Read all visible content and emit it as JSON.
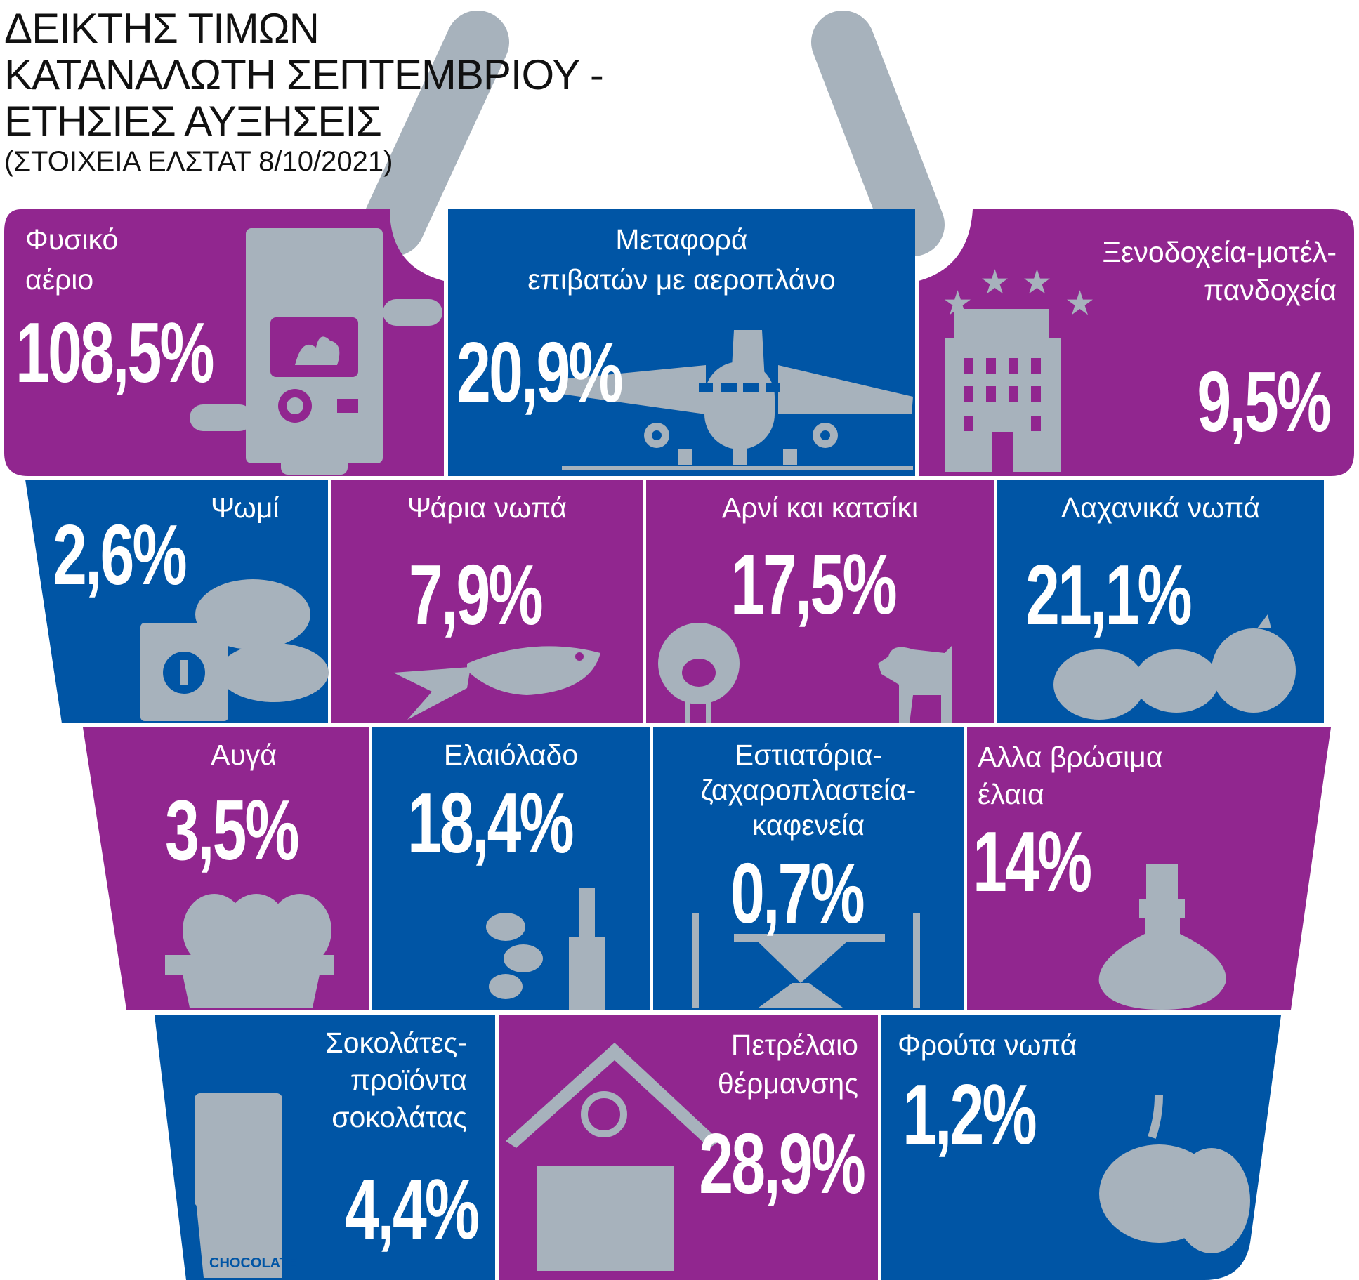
{
  "title": {
    "line1": "ΔΕΙΚΤΗΣ ΤΙΜΩΝ",
    "line2": "ΚΑΤΑΝΑΛΩΤΗ ΣΕΠΤΕΜΒΡΙΟΥ -",
    "line3": "ΕΤΗΣΙΕΣ ΑΥΞΗΣΕΙΣ",
    "source": "(ΣΤΟΙΧΕΙΑ ΕΛΣΤΑΤ 8/10/2021)"
  },
  "colors": {
    "purple": "#91268F",
    "blue": "#0055A5",
    "icon_gray": "#A7B2BC"
  },
  "items": [
    {
      "label": "Φυσικό αέριο",
      "line1": "Φυσικό",
      "line2": "αέριο",
      "value": "108,5%",
      "icon": "gas-boiler-icon"
    },
    {
      "label": "Μεταφορά επιβατών με αεροπλάνο",
      "line1": "Μεταφορά",
      "line2": "επιβατών με αεροπλάνο",
      "value": "20,9%",
      "icon": "airplane-icon"
    },
    {
      "label": "Ξενοδοχεία-μοτέλ-πανδοχεία",
      "line1": "Ξενοδοχεία-μοτέλ-",
      "line2": "πανδοχεία",
      "value": "9,5%",
      "icon": "hotel-icon"
    },
    {
      "label": "Ψωμί",
      "value": "2,6%",
      "icon": "bread-icon"
    },
    {
      "label": "Ψάρια νωπά",
      "value": "7,9%",
      "icon": "fish-icon"
    },
    {
      "label": "Αρνί και κατσίκι",
      "value": "17,5%",
      "icon": "sheep-goat-icon"
    },
    {
      "label": "Λαχανικά νωπά",
      "value": "21,1%",
      "icon": "vegetables-icon"
    },
    {
      "label": "Αυγά",
      "value": "3,5%",
      "icon": "eggs-icon"
    },
    {
      "label": "Ελαιόλαδο",
      "value": "18,4%",
      "icon": "olive-oil-icon"
    },
    {
      "label": "Εστιατόρια-ζαχαροπλαστεία-καφενεία",
      "line1": "Εστιατόρια-",
      "line2": "ζαχαροπλαστεία-",
      "line3": "καφενεία",
      "value": "0,7%",
      "icon": "cafe-table-icon"
    },
    {
      "label": "Αλλα βρώσιμα έλαια",
      "line1": "Αλλα βρώσιμα",
      "line2": "έλαια",
      "value": "14%",
      "icon": "oil-bottle-icon"
    },
    {
      "label": "Σοκολάτες-προϊόντα σοκολάτας",
      "line1": "Σοκολάτες-",
      "line2": "προϊόντα",
      "line3": "σοκολάτας",
      "value": "4,4%",
      "icon": "chocolate-icon",
      "wrapper_text": "CHOCOLATE"
    },
    {
      "label": "Πετρέλαιο θέρμανσης",
      "line1": "Πετρέλαιο",
      "line2": "θέρμανσης",
      "value": "28,9%",
      "icon": "house-radiator-icon"
    },
    {
      "label": "Φρούτα νωπά",
      "value": "1,2%",
      "icon": "fruit-icon"
    }
  ]
}
